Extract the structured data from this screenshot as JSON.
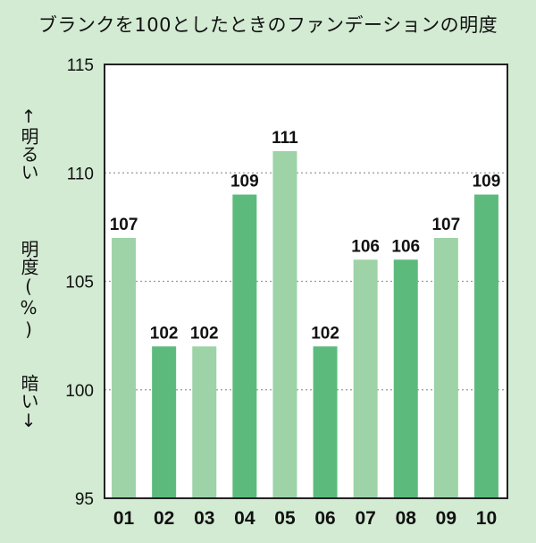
{
  "chart_data": {
    "type": "bar",
    "title": "ブランクを100としたときのファンデーションの明度",
    "ylabel_top": "↑明るい",
    "ylabel_mid": "明度(%)",
    "ylabel_bottom": "暗い↓",
    "categories": [
      "01",
      "02",
      "03",
      "04",
      "05",
      "06",
      "07",
      "08",
      "09",
      "10"
    ],
    "values": [
      107,
      102,
      102,
      109,
      111,
      102,
      106,
      106,
      107,
      109
    ],
    "ylim": [
      95,
      115
    ],
    "yticks": [
      95,
      100,
      105,
      110,
      115
    ],
    "grid": "dotted horizontal"
  },
  "colors": {
    "background": "#d3ebd3",
    "plot_background": "#ffffff",
    "bar_light": "#9dd3a6",
    "bar_dark": "#5cbb7c",
    "grid": "#999999"
  }
}
